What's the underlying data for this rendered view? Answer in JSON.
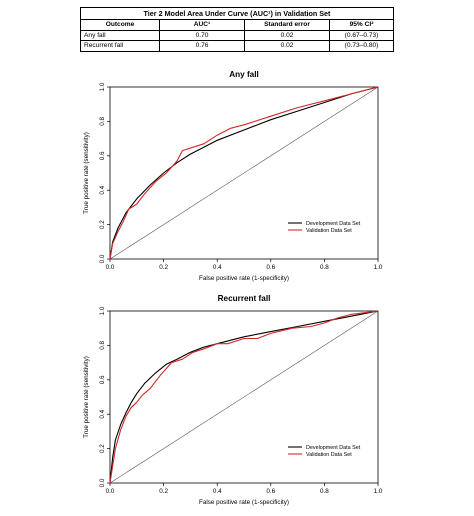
{
  "table": {
    "caption": "Tier 2 Model Area Under Curve (AUC¹) in Validation Set",
    "headers": [
      "Outcome",
      "AUC¹",
      "Standard error",
      "95% CI²"
    ],
    "rows": [
      [
        "Any fall",
        "0.70",
        "0.02",
        "(0.67–0.73)"
      ],
      [
        "Recurrent fall",
        "0.76",
        "0.02",
        "(0.73–0.80)"
      ]
    ]
  },
  "chart_data": [
    {
      "type": "line",
      "title": "Any fall",
      "xlabel": "False positive rate (1-specificity)",
      "ylabel": "True positive rate (sensitivity)",
      "xlim": [
        0,
        1
      ],
      "ylim": [
        0,
        1
      ],
      "xticks": [
        "0.0",
        "0.2",
        "0.4",
        "0.6",
        "0.8",
        "1.0"
      ],
      "yticks": [
        "0.0",
        "0.2",
        "0.4",
        "0.6",
        "0.8",
        "1.0"
      ],
      "legend": {
        "placement": "bottom-right"
      },
      "reference_line": [
        [
          0,
          0
        ],
        [
          1,
          1
        ]
      ],
      "series": [
        {
          "name": "Development Data Set",
          "color": "#000000",
          "x": [
            0,
            0.01,
            0.03,
            0.06,
            0.1,
            0.15,
            0.2,
            0.25,
            0.3,
            0.35,
            0.4,
            0.5,
            0.6,
            0.7,
            0.8,
            0.9,
            1.0
          ],
          "y": [
            0,
            0.1,
            0.18,
            0.27,
            0.35,
            0.43,
            0.5,
            0.56,
            0.61,
            0.65,
            0.69,
            0.75,
            0.81,
            0.86,
            0.91,
            0.96,
            1.0
          ]
        },
        {
          "name": "Validation Data Set",
          "color": "#d62728",
          "x": [
            0,
            0.01,
            0.03,
            0.05,
            0.07,
            0.1,
            0.13,
            0.17,
            0.21,
            0.25,
            0.27,
            0.31,
            0.35,
            0.4,
            0.45,
            0.5,
            0.6,
            0.7,
            0.8,
            0.9,
            1.0
          ],
          "y": [
            0,
            0.09,
            0.16,
            0.22,
            0.29,
            0.32,
            0.38,
            0.45,
            0.5,
            0.57,
            0.63,
            0.65,
            0.67,
            0.72,
            0.76,
            0.78,
            0.83,
            0.88,
            0.92,
            0.96,
            1.0
          ]
        }
      ]
    },
    {
      "type": "line",
      "title": "Recurrent fall",
      "xlabel": "False positive rate (1-specificity)",
      "ylabel": "True positive rate (sensitivity)",
      "xlim": [
        0,
        1
      ],
      "ylim": [
        0,
        1
      ],
      "xticks": [
        "0.0",
        "0.2",
        "0.4",
        "0.6",
        "0.8",
        "1.0"
      ],
      "yticks": [
        "0.0",
        "0.2",
        "0.4",
        "0.6",
        "0.8",
        "1.0"
      ],
      "legend": {
        "placement": "bottom-right"
      },
      "reference_line": [
        [
          0,
          0
        ],
        [
          1,
          1
        ]
      ],
      "series": [
        {
          "name": "Development Data Set",
          "color": "#000000",
          "x": [
            0,
            0.01,
            0.02,
            0.04,
            0.06,
            0.08,
            0.1,
            0.13,
            0.17,
            0.21,
            0.25,
            0.3,
            0.35,
            0.4,
            0.5,
            0.6,
            0.7,
            0.8,
            0.9,
            1.0
          ],
          "y": [
            0,
            0.15,
            0.25,
            0.34,
            0.41,
            0.47,
            0.52,
            0.58,
            0.64,
            0.69,
            0.72,
            0.76,
            0.79,
            0.81,
            0.85,
            0.88,
            0.91,
            0.94,
            0.97,
            1.0
          ]
        },
        {
          "name": "Validation Data Set",
          "color": "#d62728",
          "x": [
            0,
            0.01,
            0.02,
            0.04,
            0.06,
            0.08,
            0.1,
            0.12,
            0.15,
            0.19,
            0.23,
            0.27,
            0.31,
            0.35,
            0.4,
            0.44,
            0.5,
            0.55,
            0.6,
            0.68,
            0.75,
            0.8,
            0.85,
            0.9,
            0.95,
            1.0
          ],
          "y": [
            0,
            0.1,
            0.2,
            0.31,
            0.39,
            0.44,
            0.47,
            0.51,
            0.55,
            0.63,
            0.7,
            0.72,
            0.76,
            0.78,
            0.81,
            0.81,
            0.84,
            0.84,
            0.87,
            0.9,
            0.91,
            0.93,
            0.96,
            0.98,
            0.99,
            1.0
          ]
        }
      ]
    }
  ]
}
